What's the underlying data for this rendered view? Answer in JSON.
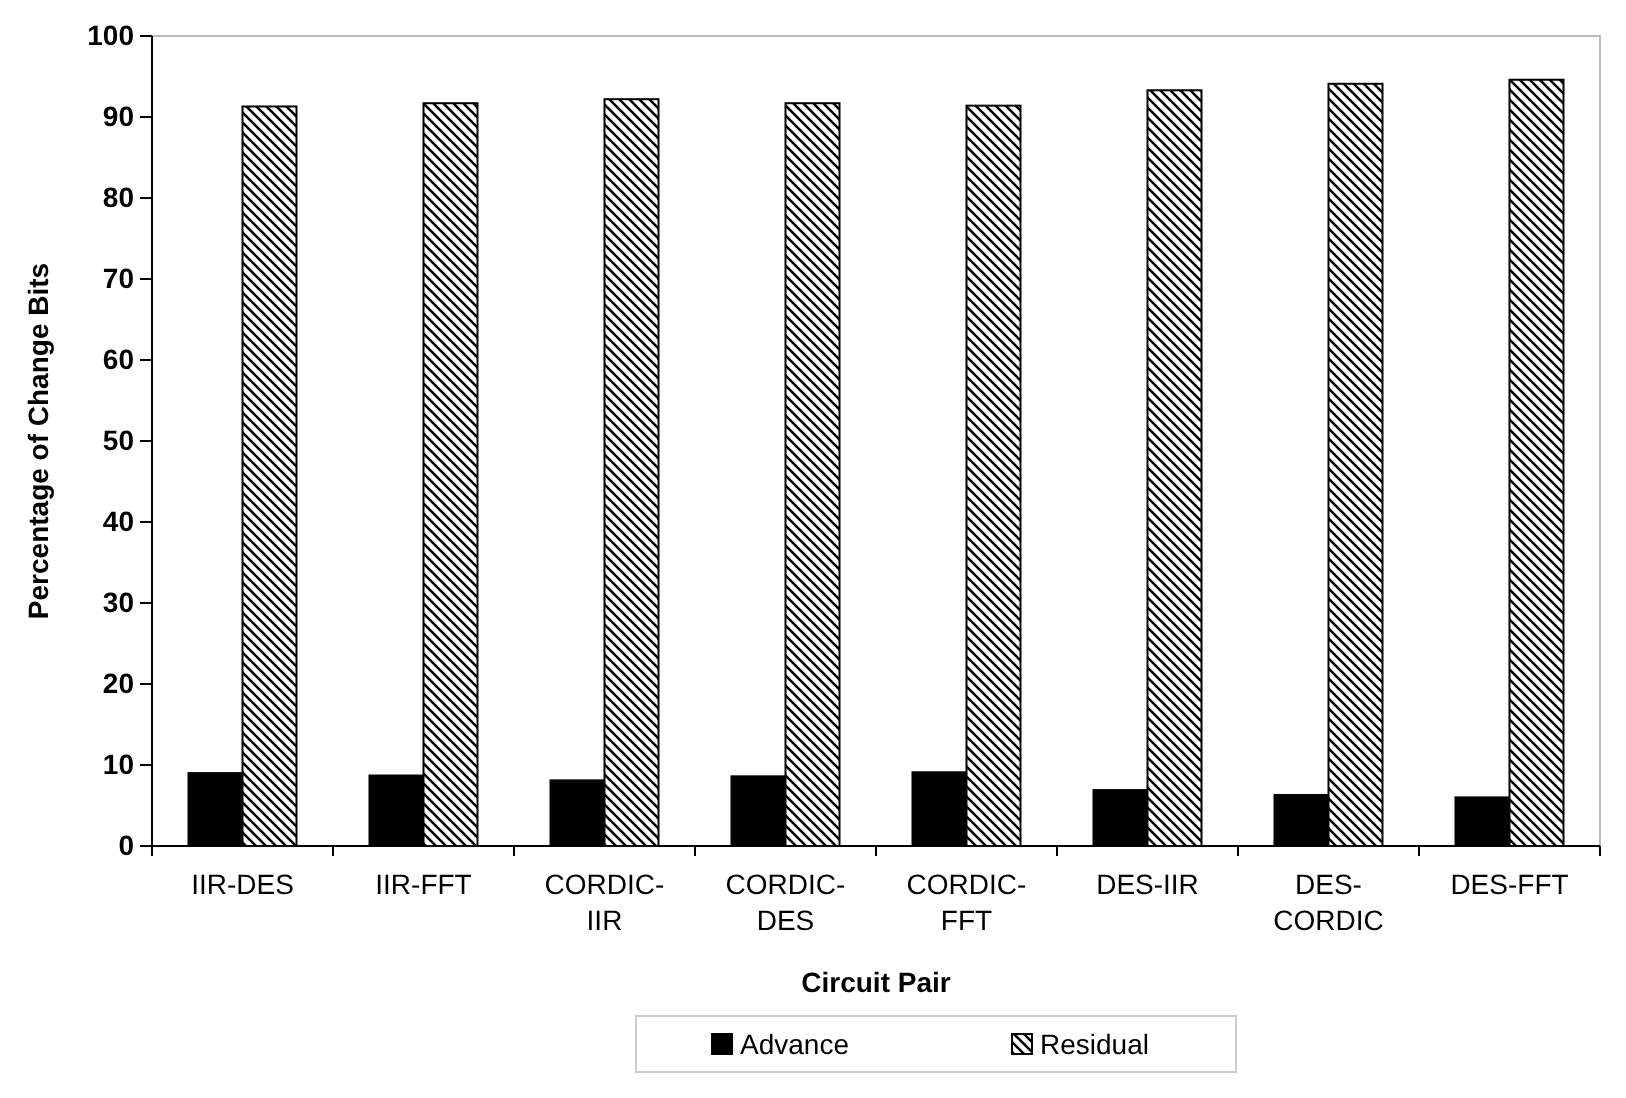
{
  "chart_data": {
    "type": "bar",
    "xlabel": "Circuit Pair",
    "ylabel": "Percentage of Change Bits",
    "categories": [
      "IIR-DES",
      "IIR-FFT",
      "CORDIC-IIR",
      "CORDIC-DES",
      "CORDIC-FFT",
      "DES-IIR",
      "DES-CORDIC",
      "DES-FFT"
    ],
    "series": [
      {
        "name": "Advance",
        "color": "#000000",
        "values": [
          9.0,
          8.7,
          8.1,
          8.6,
          9.1,
          6.9,
          6.3,
          6.0
        ]
      },
      {
        "name": "Residual",
        "color": "#000000",
        "values": [
          91.3,
          91.7,
          92.2,
          91.7,
          91.4,
          93.3,
          94.1,
          94.6
        ]
      }
    ],
    "ylim": [
      0,
      100
    ],
    "yticks": [
      0,
      10,
      20,
      30,
      40,
      50,
      60,
      70,
      80,
      90,
      100
    ],
    "grid": false,
    "legend": "bottom"
  }
}
